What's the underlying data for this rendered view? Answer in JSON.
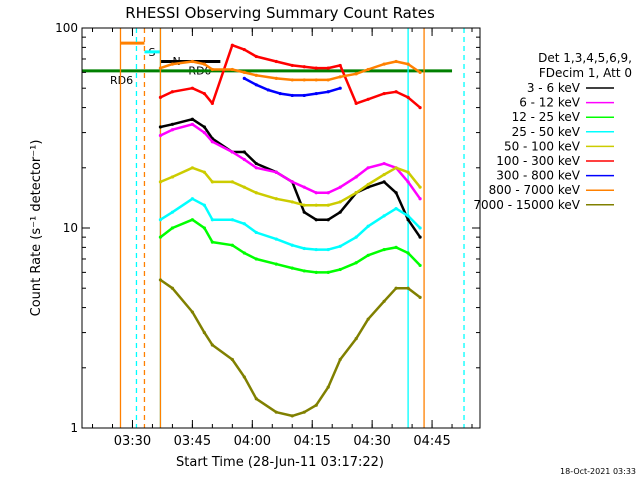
{
  "chart_data": {
    "type": "line",
    "title": "RHESSI Observing Summary Count Rates",
    "xlabel": "Start Time (28-Jun-11 03:17:22)",
    "ylabel": "Count Rate (s⁻¹ detector⁻¹)",
    "y_scale": "log",
    "ylim": [
      1,
      100
    ],
    "xlim": [
      "03:17:22",
      "04:57:00"
    ],
    "x_ticks": [
      "03:30",
      "03:45",
      "04:00",
      "04:15",
      "04:30",
      "04:45"
    ],
    "y_ticks": [
      "1",
      "10",
      "100"
    ],
    "legend_header": [
      "Det 1,3,4,5,6,9,",
      "FDecim 1, Att 0"
    ],
    "legend_position": "right",
    "grid": false,
    "series": [
      {
        "name": "3 - 6 keV",
        "color": "#000000",
        "x": [
          "03:37",
          "03:40",
          "03:45",
          "03:48",
          "03:50",
          "03:55",
          "03:58",
          "04:01",
          "04:06",
          "04:10",
          "04:13",
          "04:16",
          "04:19",
          "04:22",
          "04:26",
          "04:29",
          "04:33",
          "04:36",
          "04:39",
          "04:42"
        ],
        "y": [
          32,
          33,
          35,
          32,
          28,
          24,
          24,
          21,
          19,
          17,
          12,
          11,
          11,
          12,
          15,
          16,
          17,
          15,
          11,
          9
        ]
      },
      {
        "name": "6 - 12 keV",
        "color": "#ff00ff",
        "x": [
          "03:37",
          "03:40",
          "03:45",
          "03:48",
          "03:50",
          "03:55",
          "03:58",
          "04:01",
          "04:06",
          "04:10",
          "04:13",
          "04:16",
          "04:19",
          "04:22",
          "04:26",
          "04:29",
          "04:33",
          "04:36",
          "04:39",
          "04:42"
        ],
        "y": [
          29,
          31,
          33,
          30,
          27,
          24,
          22,
          20,
          19,
          17,
          16,
          15,
          15,
          16,
          18,
          20,
          21,
          20,
          17,
          14
        ]
      },
      {
        "name": "12 - 25 keV",
        "color": "#00ff00",
        "x": [
          "03:37",
          "03:40",
          "03:45",
          "03:48",
          "03:50",
          "03:55",
          "03:58",
          "04:01",
          "04:06",
          "04:10",
          "04:13",
          "04:16",
          "04:19",
          "04:22",
          "04:26",
          "04:29",
          "04:33",
          "04:36",
          "04:39",
          "04:42"
        ],
        "y": [
          9,
          10,
          11,
          10,
          8.5,
          8.2,
          7.5,
          7,
          6.6,
          6.3,
          6.1,
          6.0,
          6.0,
          6.2,
          6.7,
          7.3,
          7.8,
          8.0,
          7.5,
          6.5
        ]
      },
      {
        "name": "25 - 50 keV",
        "color": "#00ffff",
        "x": [
          "03:37",
          "03:40",
          "03:45",
          "03:48",
          "03:50",
          "03:55",
          "03:58",
          "04:01",
          "04:06",
          "04:10",
          "04:13",
          "04:16",
          "04:19",
          "04:22",
          "04:26",
          "04:29",
          "04:33",
          "04:36",
          "04:39",
          "04:42"
        ],
        "y": [
          11,
          12,
          14,
          13,
          11,
          11,
          10.5,
          9.5,
          8.8,
          8.2,
          7.9,
          7.8,
          7.8,
          8.1,
          9,
          10.2,
          11.5,
          12.5,
          11.5,
          10
        ]
      },
      {
        "name": "50 - 100 keV",
        "color": "#cccc00",
        "x": [
          "03:37",
          "03:40",
          "03:45",
          "03:48",
          "03:50",
          "03:55",
          "03:58",
          "04:01",
          "04:06",
          "04:10",
          "04:13",
          "04:16",
          "04:19",
          "04:22",
          "04:26",
          "04:29",
          "04:33",
          "04:36",
          "04:39",
          "04:42"
        ],
        "y": [
          17,
          18,
          20,
          19,
          17,
          17,
          16,
          15,
          14,
          13.5,
          13,
          13,
          13,
          13.5,
          15,
          16.5,
          18.5,
          20,
          19,
          16
        ]
      },
      {
        "name": "100 - 300 keV",
        "color": "#ff0000",
        "x": [
          "03:37",
          "03:40",
          "03:45",
          "03:48",
          "03:50",
          "03:55",
          "03:58",
          "04:01",
          "04:06",
          "04:10",
          "04:13",
          "04:16",
          "04:19",
          "04:22",
          "04:26",
          "04:29",
          "04:33",
          "04:36",
          "04:39",
          "04:42"
        ],
        "y": [
          45,
          48,
          50,
          47,
          42,
          82,
          78,
          72,
          68,
          65,
          64,
          63,
          63,
          65,
          42,
          44,
          47,
          48,
          45,
          40
        ]
      },
      {
        "name": "300 - 800 keV",
        "color": "#0000ff",
        "x": [
          "03:58",
          "04:01",
          "04:04",
          "04:07",
          "04:10",
          "04:13",
          "04:16",
          "04:19",
          "04:22"
        ],
        "y": [
          56,
          52,
          49,
          47,
          46,
          46,
          47,
          48,
          50
        ]
      },
      {
        "name": "800 - 7000 keV",
        "color": "#ff8000",
        "x": [
          "03:37",
          "03:40",
          "03:45",
          "03:48",
          "03:50",
          "03:55",
          "03:58",
          "04:01",
          "04:06",
          "04:10",
          "04:13",
          "04:16",
          "04:19",
          "04:22",
          "04:26",
          "04:29",
          "04:33",
          "04:36",
          "04:39",
          "04:42"
        ],
        "y": [
          63,
          66,
          68,
          66,
          62,
          62,
          60,
          58,
          56,
          55,
          55,
          55,
          55,
          57,
          59,
          62,
          66,
          68,
          66,
          60
        ]
      },
      {
        "name": "7000 - 15000 keV",
        "color": "#808000",
        "x": [
          "03:37",
          "03:40",
          "03:45",
          "03:48",
          "03:50",
          "03:55",
          "03:58",
          "04:01",
          "04:06",
          "04:10",
          "04:13",
          "04:16",
          "04:19",
          "04:22",
          "04:26",
          "04:29",
          "04:33",
          "04:36",
          "04:39",
          "04:42"
        ],
        "y": [
          5.5,
          5.0,
          3.8,
          3.0,
          2.6,
          2.2,
          1.8,
          1.4,
          1.2,
          1.15,
          1.2,
          1.3,
          1.6,
          2.2,
          2.8,
          3.5,
          4.3,
          5.0,
          5.0,
          4.5
        ]
      }
    ],
    "annotations": [
      {
        "label": "S",
        "color": "#ff8000",
        "x_start": "03:27",
        "x_end": "03:33",
        "y": 84
      },
      {
        "label": "N",
        "color": "#00ffff",
        "x_start": "03:33",
        "x_end": "03:37",
        "y": 76
      },
      {
        "label": "RD0",
        "color": "#000000",
        "x_start": "03:37",
        "x_end": "03:52",
        "y": 68
      },
      {
        "label": "RD6",
        "color": "#008000",
        "x_start": "03:17",
        "x_end": "04:50",
        "y": 61
      }
    ],
    "vertical_lines": [
      {
        "color": "#ff8000",
        "x": "03:27",
        "style": "solid"
      },
      {
        "color": "#00ffff",
        "x": "03:31",
        "style": "dashed"
      },
      {
        "color": "#ff8000",
        "x": "03:33",
        "style": "dashed"
      },
      {
        "color": "#00ffff",
        "x": "03:37",
        "style": "solid"
      },
      {
        "color": "#ff8000",
        "x": "03:37",
        "style": "solid"
      },
      {
        "color": "#ff8000",
        "x": "04:43",
        "style": "solid"
      },
      {
        "color": "#00ffff",
        "x": "04:39",
        "style": "solid"
      },
      {
        "color": "#00ffff",
        "x": "04:53",
        "style": "dashed"
      }
    ],
    "footer_timestamp": "18-Oct-2021 03:33"
  }
}
